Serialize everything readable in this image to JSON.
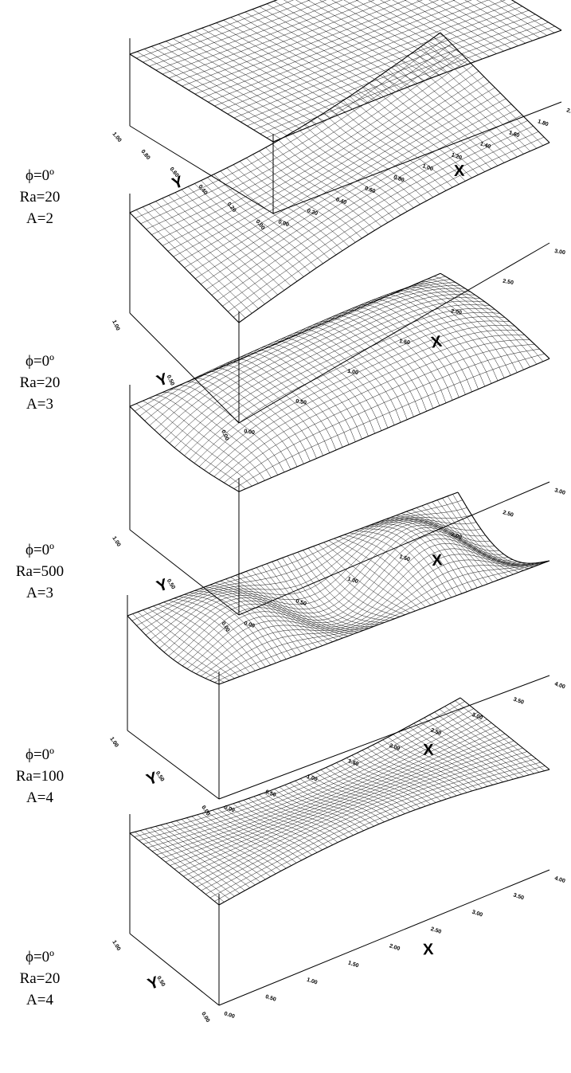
{
  "chart_data": [
    {
      "type": "surface",
      "label_lines": [
        "ϕ=0º",
        "Ra=20",
        "A=2"
      ],
      "xlabel": "X",
      "ylabel": "Y",
      "xlim": [
        0,
        2
      ],
      "ylim": [
        0,
        1
      ],
      "x_ticks": [
        "0.00",
        "0.20",
        "0.40",
        "0.60",
        "0.80",
        "1.00",
        "1.20",
        "1.40",
        "1.60",
        "1.80",
        "2.00"
      ],
      "y_ticks": [
        "0.00",
        "0.20",
        "0.40",
        "0.60",
        "0.80",
        "1.00"
      ],
      "shape": "single-tilt",
      "amplitude": 0.12,
      "mesh": [
        40,
        22
      ]
    },
    {
      "type": "surface",
      "label_lines": [
        "ϕ=0º",
        "Ra=20",
        "A=3"
      ],
      "xlabel": "X",
      "ylabel": "Y",
      "xlim": [
        0,
        3
      ],
      "ylim": [
        0,
        1
      ],
      "x_ticks": [
        "0.00",
        "0.50",
        "1.00",
        "1.50",
        "2.00",
        "2.50",
        "3.00"
      ],
      "y_ticks": [
        "0.00",
        "0.50",
        "1.00"
      ],
      "shape": "single-tilt",
      "amplitude": 0.45,
      "mesh": [
        48,
        20
      ]
    },
    {
      "type": "surface",
      "label_lines": [
        "ϕ=0º",
        "Ra=500",
        "A=3"
      ],
      "xlabel": "X",
      "ylabel": "Y",
      "xlim": [
        0,
        3
      ],
      "ylim": [
        0,
        1
      ],
      "x_ticks": [
        "0.00",
        "0.50",
        "1.00",
        "1.50",
        "2.00",
        "2.50",
        "3.00"
      ],
      "y_ticks": [
        "0.00",
        "0.50",
        "1.00"
      ],
      "shape": "boundary-layer",
      "amplitude": 0.7,
      "mesh": [
        48,
        22
      ]
    },
    {
      "type": "surface",
      "label_lines": [
        "ϕ=0º",
        "Ra=100",
        "A=4"
      ],
      "xlabel": "X",
      "ylabel": "Y",
      "xlim": [
        0,
        4
      ],
      "ylim": [
        0,
        1
      ],
      "x_ticks": [
        "0.00",
        "0.50",
        "1.00",
        "1.50",
        "2.00",
        "2.50",
        "3.00",
        "3.50",
        "4.00"
      ],
      "y_ticks": [
        "0.00",
        "0.50",
        "1.00"
      ],
      "shape": "multi-cell",
      "amplitude": 0.8,
      "mesh": [
        64,
        20
      ]
    },
    {
      "type": "surface",
      "label_lines": [
        "ϕ=0º",
        "Ra=20",
        "A=4"
      ],
      "xlabel": "X",
      "ylabel": "Y",
      "xlim": [
        0,
        4
      ],
      "ylim": [
        0,
        1
      ],
      "x_ticks": [
        "0.00",
        "0.50",
        "1.00",
        "1.50",
        "2.00",
        "2.50",
        "3.00",
        "3.50",
        "4.00"
      ],
      "y_ticks": [
        "0.00",
        "0.50",
        "1.00"
      ],
      "shape": "single-tilt",
      "amplitude": 0.5,
      "mesh": [
        64,
        20
      ]
    }
  ]
}
